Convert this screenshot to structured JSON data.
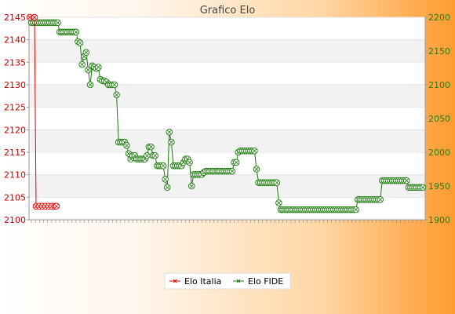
{
  "chart_data": {
    "type": "line",
    "title": "Grafico Elo",
    "xlabel": "",
    "ylabel": "",
    "y_left": {
      "min": 2100,
      "max": 2145,
      "ticks": [
        2100,
        2105,
        2110,
        2115,
        2120,
        2125,
        2130,
        2135,
        2140,
        2145
      ]
    },
    "y_right": {
      "min": 1900,
      "max": 2200,
      "ticks": [
        1900,
        1950,
        2000,
        2050,
        2100,
        2150,
        2200
      ]
    },
    "grid": "horizontal bands",
    "legend_position": "bottom",
    "series": [
      {
        "name": "Elo Italia",
        "axis": "left",
        "color": "#e00000",
        "values": [
          2145,
          2145,
          2103,
          2103,
          2103,
          2103,
          2103,
          2103,
          2103,
          2103
        ]
      },
      {
        "name": "Elo FIDE",
        "axis": "right",
        "color": "#1a7a0a",
        "values": [
          2192,
          2192,
          2192,
          2192,
          2192,
          2192,
          2192,
          2192,
          2192,
          2192,
          2192,
          2192,
          2192,
          2192,
          2178,
          2178,
          2178,
          2178,
          2178,
          2178,
          2178,
          2178,
          2178,
          2164,
          2162,
          2130,
          2142,
          2148,
          2122,
          2100,
          2128,
          2126,
          2124,
          2126,
          2108,
          2106,
          2106,
          2104,
          2100,
          2100,
          2100,
          2100,
          2085,
          2015,
          2015,
          2015,
          2015,
          2010,
          1998,
          1990,
          1995,
          1995,
          1990,
          1990,
          1990,
          1990,
          1990,
          1995,
          2008,
          2008,
          1995,
          1995,
          1980,
          1980,
          1980,
          1980,
          1960,
          1948,
          2030,
          2015,
          1980,
          1980,
          1980,
          1980,
          1980,
          1985,
          1990,
          1990,
          1985,
          1950,
          1967,
          1967,
          1967,
          1967,
          1967,
          1970,
          1972,
          1972,
          1972,
          1972,
          1972,
          1972,
          1972,
          1972,
          1972,
          1972,
          1972,
          1972,
          1972,
          1972,
          1985,
          1985,
          2000,
          2002,
          2002,
          2002,
          2002,
          2002,
          2002,
          2002,
          2002,
          1975,
          1955,
          1955,
          1955,
          1955,
          1955,
          1955,
          1955,
          1955,
          1955,
          1955,
          1925,
          1915,
          1915,
          1915,
          1915,
          1915,
          1915,
          1915,
          1915,
          1915,
          1915,
          1915,
          1915,
          1915,
          1915,
          1915,
          1915,
          1915,
          1915,
          1915,
          1915,
          1915,
          1915,
          1915,
          1915,
          1915,
          1915,
          1915,
          1915,
          1915,
          1915,
          1915,
          1915,
          1915,
          1915,
          1915,
          1915,
          1915,
          1915,
          1930,
          1930,
          1930,
          1930,
          1930,
          1930,
          1930,
          1930,
          1930,
          1930,
          1930,
          1930,
          1958,
          1958,
          1958,
          1958,
          1958,
          1958,
          1958,
          1958,
          1958,
          1958,
          1958,
          1958,
          1958,
          1948,
          1948,
          1948,
          1948,
          1948,
          1948,
          1948,
          1948
        ]
      }
    ]
  }
}
